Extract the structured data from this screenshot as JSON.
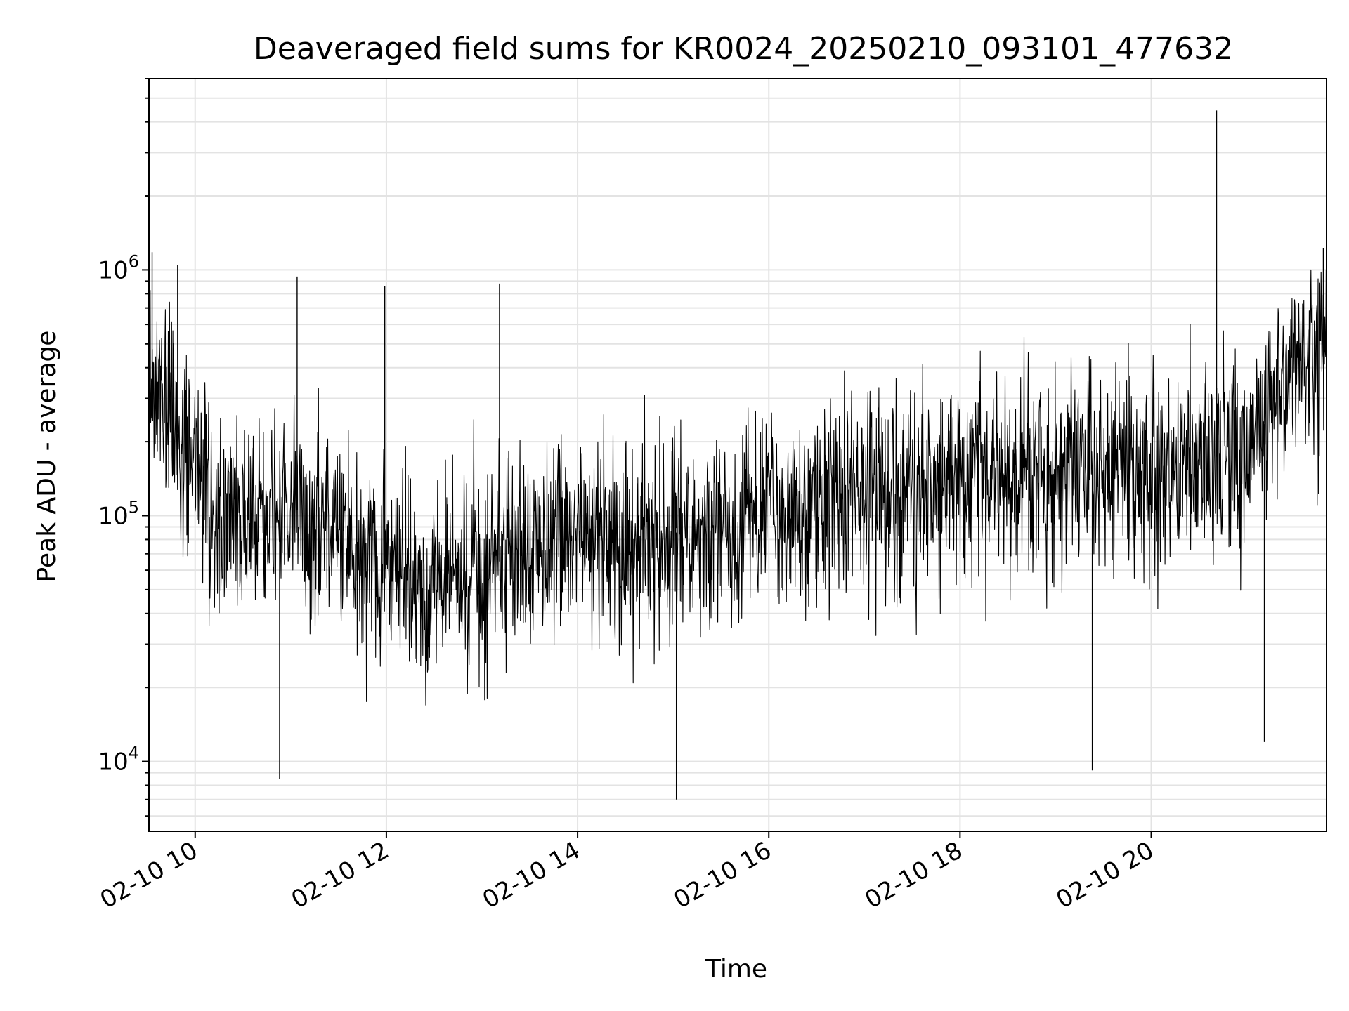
{
  "chart_data": {
    "type": "line",
    "title": "Deaveraged field sums for KR0024_20250210_093101_477632",
    "xlabel": "Time",
    "ylabel": "Peak ADU - average",
    "yscale": "log",
    "ylim": [
      5200,
      6000000
    ],
    "xlim": [
      "2025-02-10 09:31",
      "2025-02-10 21:50"
    ],
    "grid": true,
    "line_color": "#000000",
    "x_ticks": [
      {
        "t": "2025-02-10 10:00",
        "label": "02-10 10"
      },
      {
        "t": "2025-02-10 12:00",
        "label": "02-10 12"
      },
      {
        "t": "2025-02-10 14:00",
        "label": "02-10 14"
      },
      {
        "t": "2025-02-10 16:00",
        "label": "02-10 16"
      },
      {
        "t": "2025-02-10 18:00",
        "label": "02-10 18"
      },
      {
        "t": "2025-02-10 20:00",
        "label": "02-10 20"
      }
    ],
    "y_ticks": [
      {
        "value": 10000,
        "base": "10",
        "exp": "4"
      },
      {
        "value": 100000,
        "base": "10",
        "exp": "5"
      },
      {
        "value": 1000000,
        "base": "10",
        "exp": "6"
      }
    ],
    "series": [
      {
        "x": [
          "2025-02-10 09:31",
          "2025-02-10 09:45",
          "2025-02-10 10:00",
          "2025-02-10 10:10",
          "2025-02-10 10:30",
          "2025-02-10 11:00",
          "2025-02-10 11:30",
          "2025-02-10 12:00",
          "2025-02-10 12:30",
          "2025-02-10 13:00",
          "2025-02-10 13:30",
          "2025-02-10 14:00",
          "2025-02-10 14:30",
          "2025-02-10 15:00",
          "2025-02-10 15:30",
          "2025-02-10 16:00",
          "2025-02-10 16:30",
          "2025-02-10 17:00",
          "2025-02-10 17:30",
          "2025-02-10 18:00",
          "2025-02-10 18:30",
          "2025-02-10 19:00",
          "2025-02-10 19:30",
          "2025-02-10 20:00",
          "2025-02-10 20:30",
          "2025-02-10 21:00",
          "2025-02-10 21:15",
          "2025-02-10 21:30",
          "2025-02-10 21:50"
        ],
        "y": [
          300000,
          250000,
          150000,
          100000,
          90000,
          110000,
          80000,
          60000,
          55000,
          60000,
          75000,
          90000,
          80000,
          85000,
          90000,
          100000,
          110000,
          115000,
          130000,
          140000,
          140000,
          150000,
          155000,
          160000,
          170000,
          180000,
          260000,
          400000,
          450000
        ]
      }
    ],
    "spikes": [
      {
        "x": "2025-02-10 09:33",
        "y": 1180000
      },
      {
        "x": "2025-02-10 09:49",
        "y": 1050000
      },
      {
        "x": "2025-02-10 10:53",
        "y": 8500
      },
      {
        "x": "2025-02-10 11:04",
        "y": 940000
      },
      {
        "x": "2025-02-10 11:59",
        "y": 860000
      },
      {
        "x": "2025-02-10 13:11",
        "y": 880000
      },
      {
        "x": "2025-02-10 15:02",
        "y": 7000
      },
      {
        "x": "2025-02-10 19:23",
        "y": 9200
      },
      {
        "x": "2025-02-10 20:41",
        "y": 4450000
      },
      {
        "x": "2025-02-10 21:11",
        "y": 12000
      },
      {
        "x": "2025-02-10 21:48",
        "y": 1230000
      }
    ]
  }
}
